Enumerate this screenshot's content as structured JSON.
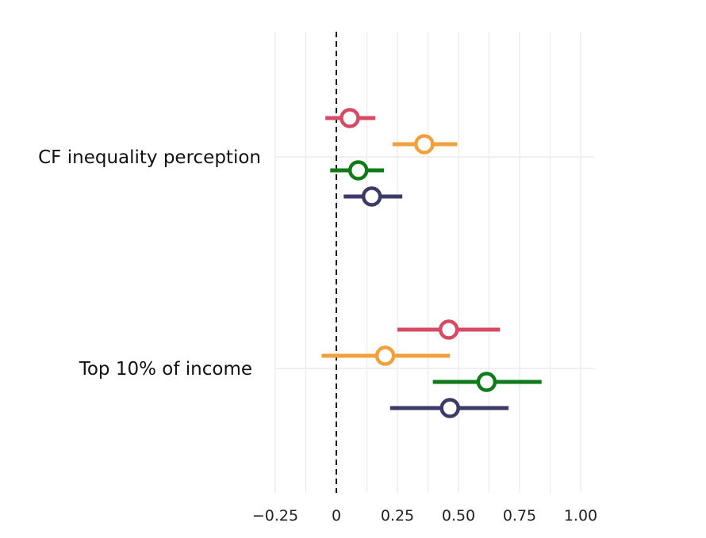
{
  "chart_data": {
    "type": "forest",
    "title": "",
    "xlabel": "",
    "ylabel": "",
    "xlim": [
      -0.25,
      1.05
    ],
    "x_ticks": [
      -0.25,
      0,
      0.25,
      0.5,
      0.75,
      1.0
    ],
    "x_tick_labels": [
      "−0.25",
      "0",
      "0.25",
      "0.50",
      "0.75",
      "1.00"
    ],
    "reference_line": 0,
    "grid": true,
    "legend": "none",
    "categories": [
      "CF inequality perception",
      "Top 10% of income"
    ],
    "series": [
      {
        "color": "#d64a64",
        "points": [
          {
            "estimate": 0.055,
            "low": -0.045,
            "high": 0.16
          },
          {
            "estimate": 0.46,
            "low": 0.25,
            "high": 0.67
          }
        ]
      },
      {
        "color": "#f2a03d",
        "points": [
          {
            "estimate": 0.36,
            "low": 0.23,
            "high": 0.495
          },
          {
            "estimate": 0.2,
            "low": -0.06,
            "high": 0.465
          }
        ]
      },
      {
        "color": "#0f7a18",
        "points": [
          {
            "estimate": 0.09,
            "low": -0.025,
            "high": 0.195
          },
          {
            "estimate": 0.615,
            "low": 0.395,
            "high": 0.84
          }
        ]
      },
      {
        "color": "#3b3a68",
        "points": [
          {
            "estimate": 0.145,
            "low": 0.03,
            "high": 0.27
          },
          {
            "estimate": 0.465,
            "low": 0.22,
            "high": 0.705
          }
        ]
      }
    ]
  }
}
